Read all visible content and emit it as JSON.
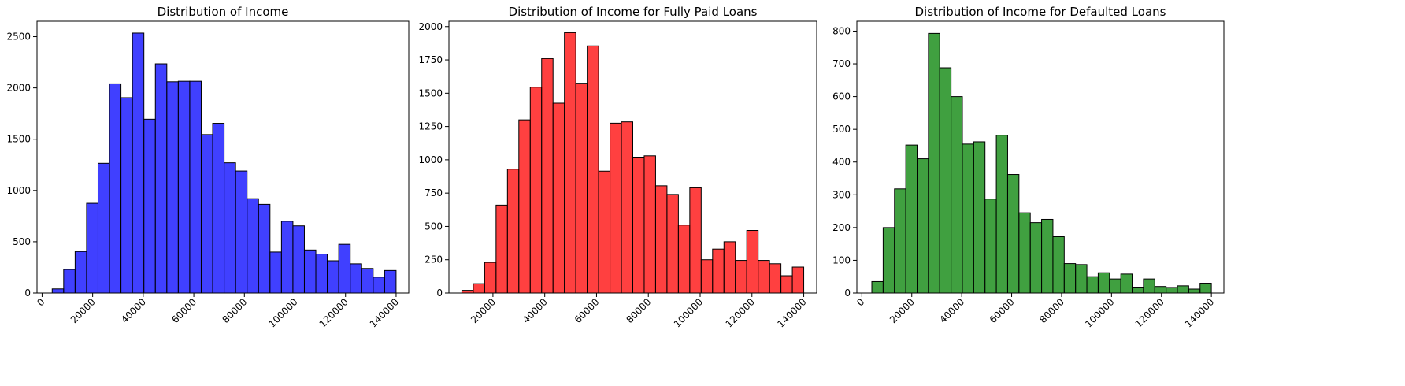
{
  "chart_data": [
    {
      "type": "bar",
      "title": "Distribution of Income",
      "xlabel": "",
      "ylabel": "",
      "color": "#0000ff",
      "xlim": [
        -2000,
        145000
      ],
      "ylim": [
        0,
        2650
      ],
      "xticks": [
        0,
        20000,
        40000,
        60000,
        80000,
        100000,
        120000,
        140000
      ],
      "yticks": [
        0,
        500,
        1000,
        1500,
        2000,
        2500
      ],
      "bin_start": 4000,
      "bin_width": 4533,
      "values": [
        40,
        230,
        405,
        875,
        1265,
        2040,
        1905,
        2535,
        1695,
        2235,
        2060,
        2065,
        2065,
        1545,
        1655,
        1270,
        1190,
        920,
        865,
        400,
        700,
        655,
        420,
        380,
        315,
        475,
        285,
        240,
        155,
        220
      ]
    },
    {
      "type": "bar",
      "title": "Distribution of Income for Fully Paid Loans",
      "xlabel": "",
      "ylabel": "",
      "color": "#ff0000",
      "xlim": [
        3000,
        145000
      ],
      "ylim": [
        0,
        2040
      ],
      "xticks": [
        20000,
        40000,
        60000,
        80000,
        100000,
        120000,
        140000
      ],
      "yticks": [
        0,
        250,
        500,
        750,
        1000,
        1250,
        1500,
        1750,
        2000
      ],
      "bin_start": 8000,
      "bin_width": 4400,
      "values": [
        20,
        70,
        230,
        660,
        930,
        1300,
        1545,
        1760,
        1425,
        1955,
        1575,
        1855,
        915,
        1275,
        1285,
        1020,
        1030,
        805,
        740,
        510,
        790,
        250,
        330,
        385,
        245,
        470,
        245,
        220,
        130,
        195
      ]
    },
    {
      "type": "bar",
      "title": "Distribution of Income for Defaulted Loans",
      "xlabel": "",
      "ylabel": "",
      "color": "#008000",
      "xlim": [
        -2000,
        145000
      ],
      "ylim": [
        0,
        830
      ],
      "xticks": [
        0,
        20000,
        40000,
        60000,
        80000,
        100000,
        120000,
        140000
      ],
      "yticks": [
        0,
        100,
        200,
        300,
        400,
        500,
        600,
        700,
        800
      ],
      "bin_start": 4000,
      "bin_width": 4533,
      "values": [
        35,
        200,
        318,
        452,
        410,
        793,
        688,
        600,
        455,
        462,
        287,
        482,
        362,
        245,
        215,
        225,
        172,
        90,
        87,
        50,
        62,
        43,
        58,
        18,
        43,
        20,
        17,
        22,
        12,
        30
      ]
    }
  ]
}
